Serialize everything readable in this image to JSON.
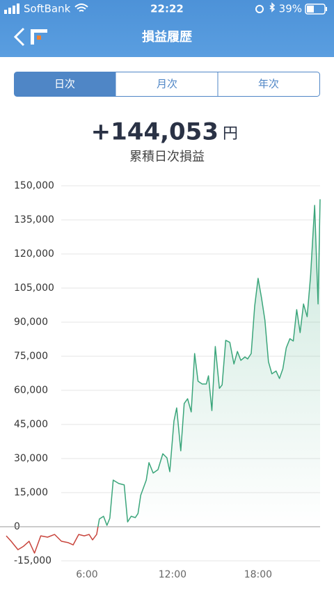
{
  "status_bar": {
    "carrier": "SoftBank",
    "time": "22:22",
    "battery": "39%"
  },
  "header": {
    "title": "損益履歴"
  },
  "tabs": [
    "日次",
    "月次",
    "年次"
  ],
  "summary": {
    "amount": "+144,053",
    "unit": "円",
    "caption": "累積日次損益"
  },
  "chart_data": {
    "type": "line",
    "x": [
      0.34,
      0.68,
      1.16,
      1.55,
      1.94,
      2.32,
      2.76,
      3.24,
      3.73,
      4.21,
      4.69,
      5.03,
      5.42,
      5.81,
      6.15,
      6.39,
      6.68,
      6.87,
      7.16,
      7.4,
      7.6,
      7.84,
      8.23,
      8.61,
      8.85,
      9.1,
      9.39,
      9.58,
      9.77,
      10.16,
      10.35,
      10.64,
      10.98,
      11.32,
      11.61,
      11.81,
      12.1,
      12.29,
      12.58,
      12.82,
      13.06,
      13.31,
      13.55,
      13.79,
      14.08,
      14.37,
      14.52,
      14.76,
      15.0,
      15.29,
      15.48,
      15.73,
      16.02,
      16.31,
      16.55,
      16.79,
      17.08,
      17.27,
      17.52,
      17.76,
      18.0,
      18.24,
      18.48,
      18.73,
      18.97,
      19.26,
      19.5,
      19.74,
      19.98,
      20.23,
      20.47,
      20.71,
      20.95,
      21.19,
      21.44,
      21.68,
      21.97,
      22.21,
      22.35
    ],
    "values": [
      -4000,
      -6400,
      -10100,
      -8600,
      -6400,
      -11600,
      -4000,
      -4600,
      -3400,
      -6400,
      -7000,
      -8000,
      -3400,
      -4000,
      -3400,
      -5800,
      -3400,
      3400,
      4600,
      600,
      3700,
      20500,
      19000,
      18400,
      2100,
      4600,
      4000,
      5800,
      13800,
      20500,
      28200,
      23600,
      25100,
      32100,
      30300,
      24200,
      46500,
      52300,
      33400,
      54200,
      56300,
      50500,
      76200,
      64000,
      62800,
      62800,
      66400,
      51100,
      79300,
      60900,
      62400,
      82000,
      81100,
      71600,
      77100,
      73200,
      74700,
      73800,
      76200,
      97000,
      109300,
      100700,
      90900,
      72600,
      67300,
      68500,
      65200,
      69500,
      78700,
      82700,
      81700,
      95500,
      85400,
      98000,
      92400,
      110200,
      141400,
      98000,
      144053
    ],
    "color": "#3aa57a",
    "negative_color": "#c8443c",
    "xlim": [
      -0.1,
      22.35
    ],
    "xticks": [
      {
        "value": 6,
        "label": "6:00"
      },
      {
        "value": 12,
        "label": "12:00"
      },
      {
        "value": 18,
        "label": "18:00"
      }
    ],
    "ylim": [
      -15000,
      150000
    ],
    "yticks": [
      {
        "value": 150000,
        "label": "150,000"
      },
      {
        "value": 135000,
        "label": "135,000"
      },
      {
        "value": 120000,
        "label": "120,000"
      },
      {
        "value": 105000,
        "label": "105,000"
      },
      {
        "value": 90000,
        "label": "90,000"
      },
      {
        "value": 75000,
        "label": "75,000"
      },
      {
        "value": 60000,
        "label": "60,000"
      },
      {
        "value": 45000,
        "label": "45,000"
      },
      {
        "value": 30000,
        "label": "30,000"
      },
      {
        "value": 15000,
        "label": "15,000"
      },
      0,
      {
        "value": -15000,
        "label": "-15,000"
      }
    ],
    "grid": true
  }
}
